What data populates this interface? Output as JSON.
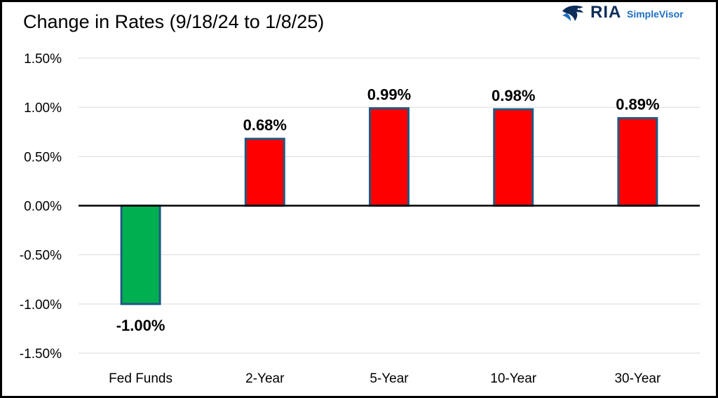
{
  "chart_data": {
    "type": "bar",
    "title": "Change in Rates (9/18/24 to 1/8/25)",
    "categories": [
      "Fed Funds",
      "2-Year",
      "5-Year",
      "10-Year",
      "30-Year"
    ],
    "values": [
      -1.0,
      0.68,
      0.99,
      0.98,
      0.89
    ],
    "value_labels": [
      "-1.00%",
      "0.68%",
      "0.99%",
      "0.98%",
      "0.89%"
    ],
    "ylim": [
      -1.5,
      1.5
    ],
    "yticks": [
      1.5,
      1.0,
      0.5,
      0.0,
      -0.5,
      -1.0,
      -1.5
    ],
    "ytick_labels": [
      "1.50%",
      "1.00%",
      "0.50%",
      "0.00%",
      "-0.50%",
      "-1.00%",
      "-1.50%"
    ],
    "xlabel": "",
    "ylabel": "",
    "grid": true,
    "legend": "none",
    "colors": {
      "positive": "#ff0000",
      "negative": "#00b050",
      "bar_outline": "#1f5a82",
      "grid": "#d9d9d9",
      "zero_line": "#000000"
    }
  },
  "logo": {
    "brand": "RIA",
    "product": "SimpleVisor",
    "icon": "eagle-head-icon"
  }
}
